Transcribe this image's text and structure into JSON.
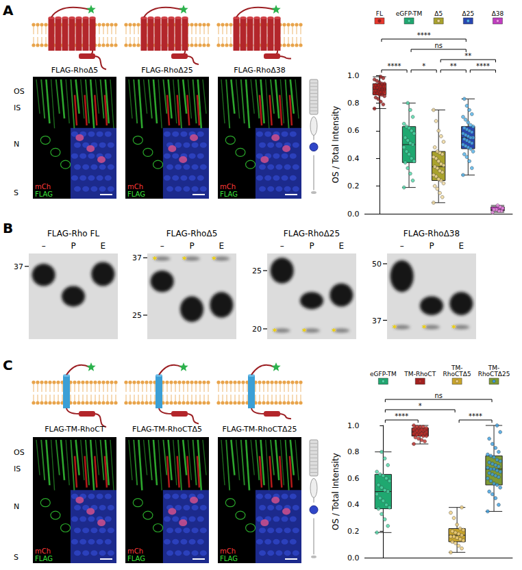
{
  "figure": {
    "panel_A": {
      "letter": "A",
      "layers": [
        "OS",
        "IS",
        "N",
        "S"
      ],
      "images": [
        {
          "title": "FLAG-RhoΔ5",
          "channels": [
            "mCh",
            "FLAG"
          ]
        },
        {
          "title": "FLAG-RhoΔ25",
          "channels": [
            "mCh",
            "FLAG"
          ]
        },
        {
          "title": "FLAG-RhoΔ38",
          "channels": [
            "mCh",
            "FLAG"
          ]
        }
      ]
    },
    "panel_B": {
      "letter": "B",
      "blots": [
        {
          "title": "FLAG-Rho FL",
          "lanes": [
            "–",
            "P",
            "E"
          ],
          "markers": [
            37
          ],
          "asterisk": "*",
          "asterisk_lanes": []
        },
        {
          "title": "FLAG-RhoΔ5",
          "lanes": [
            "–",
            "P",
            "E"
          ],
          "markers": [
            37,
            25
          ],
          "asterisk": "*",
          "asterisk_lanes": [
            "–",
            "P",
            "E"
          ]
        },
        {
          "title": "FLAG-RhoΔ25",
          "lanes": [
            "–",
            "P",
            "E"
          ],
          "markers": [
            25,
            20
          ],
          "asterisk": "*",
          "asterisk_lanes": [
            "–",
            "P",
            "E"
          ]
        },
        {
          "title": "FLAG-RhoΔ38",
          "lanes": [
            "–",
            "P",
            "E"
          ],
          "markers": [
            50,
            37
          ],
          "asterisk": "*",
          "asterisk_lanes": [
            "–",
            "P",
            "E"
          ]
        }
      ]
    },
    "panel_C": {
      "letter": "C",
      "layers": [
        "OS",
        "IS",
        "N",
        "S"
      ],
      "images": [
        {
          "title": "FLAG-TM-RhoCT",
          "channels": [
            "mCh",
            "FLAG"
          ]
        },
        {
          "title": "FLAG-TM-RhoCTΔ5",
          "channels": [
            "mCh",
            "FLAG"
          ]
        },
        {
          "title": "FLAG-TM-RhoCTΔ25",
          "channels": [
            "mCh",
            "FLAG"
          ]
        }
      ]
    }
  },
  "chart_data": [
    {
      "type": "boxplot",
      "ylabel": "OS / Total Intensity",
      "categories": [
        "FL",
        "eGFP-TM",
        "Δ5",
        "Δ25",
        "Δ38"
      ],
      "legend": "top",
      "tick_labels": "y",
      "grid": false,
      "ylim": [
        0,
        1
      ],
      "yticks": [
        {
          "value": 0,
          "label": "0.0"
        },
        0.2,
        0.4,
        0.6,
        0.8,
        {
          "value": 1,
          "label": "1.0"
        }
      ],
      "groups": [
        {
          "name": "FL",
          "color": "#e8372c",
          "point_color": "#9b1b1b",
          "box": [
            0.76,
            0.86,
            0.9,
            0.94,
            0.99
          ],
          "values": [
            0.76,
            0.79,
            0.81,
            0.83,
            0.84,
            0.85,
            0.86,
            0.86,
            0.87,
            0.87,
            0.88,
            0.88,
            0.89,
            0.89,
            0.9,
            0.9,
            0.9,
            0.91,
            0.91,
            0.92,
            0.92,
            0.93,
            0.93,
            0.94,
            0.94,
            0.95,
            0.96,
            0.97,
            0.98,
            0.99
          ]
        },
        {
          "name": "eGFP-TM",
          "color": "#1fa870",
          "point_color": "#4dd6a6",
          "box": [
            0.19,
            0.37,
            0.5,
            0.63,
            0.8
          ],
          "values": [
            0.19,
            0.24,
            0.29,
            0.33,
            0.37,
            0.38,
            0.4,
            0.43,
            0.45,
            0.48,
            0.5,
            0.51,
            0.53,
            0.55,
            0.58,
            0.6,
            0.62,
            0.63,
            0.65,
            0.7,
            0.75,
            0.8
          ]
        },
        {
          "name": "Δ5",
          "color": "#a9a22c",
          "point_color": "#efd79a",
          "box": [
            0.08,
            0.24,
            0.34,
            0.45,
            0.75
          ],
          "values": [
            0.08,
            0.12,
            0.15,
            0.18,
            0.2,
            0.22,
            0.24,
            0.25,
            0.27,
            0.28,
            0.3,
            0.31,
            0.33,
            0.34,
            0.35,
            0.36,
            0.38,
            0.4,
            0.41,
            0.43,
            0.44,
            0.45,
            0.48,
            0.52,
            0.56,
            0.6,
            0.67,
            0.75
          ]
        },
        {
          "name": "Δ25",
          "color": "#2846b4",
          "point_color": "#4fb0e8",
          "box": [
            0.28,
            0.47,
            0.55,
            0.63,
            0.83
          ],
          "values": [
            0.28,
            0.33,
            0.38,
            0.41,
            0.43,
            0.45,
            0.47,
            0.48,
            0.49,
            0.5,
            0.51,
            0.52,
            0.53,
            0.54,
            0.55,
            0.55,
            0.56,
            0.57,
            0.58,
            0.59,
            0.6,
            0.61,
            0.62,
            0.63,
            0.64,
            0.66,
            0.68,
            0.7,
            0.72,
            0.75,
            0.78,
            0.83
          ]
        },
        {
          "name": "Δ38",
          "color": "#c23cc2",
          "point_color": "#f08ee8",
          "box": [
            0.01,
            0.02,
            0.03,
            0.05,
            0.06
          ],
          "values": [
            0.01,
            0.02,
            0.02,
            0.03,
            0.03,
            0.04,
            0.05,
            0.06
          ]
        }
      ],
      "significance": [
        {
          "from": "Δ5",
          "to": "Δ38",
          "label": "**"
        },
        {
          "from": "FL",
          "to": "Δ25",
          "label": "****"
        },
        {
          "from": "FL",
          "to": "eGFP-TM",
          "label": "****"
        },
        {
          "from": "eGFP-TM",
          "to": "Δ5",
          "label": "*"
        },
        {
          "from": "Δ5",
          "to": "Δ25",
          "label": "**"
        },
        {
          "from": "Δ25",
          "to": "Δ38",
          "label": "****"
        },
        {
          "from": "eGFP-TM",
          "to": "Δ25",
          "label": "ns"
        }
      ]
    },
    {
      "type": "boxplot",
      "ylabel": "OS / Total Intensity",
      "categories": [
        "eGFP-TM",
        "TM-RhoCT",
        "TM-RhoCTΔ5",
        "TM-RhoCTΔ25"
      ],
      "legend": "top",
      "tick_labels": "y",
      "grid": false,
      "ylim": [
        0,
        1
      ],
      "yticks": [
        {
          "value": 0,
          "label": "0.0"
        },
        0.2,
        0.4,
        0.6,
        0.8,
        {
          "value": 1,
          "label": "1.0"
        }
      ],
      "groups": [
        {
          "name": "eGFP-TM",
          "color": "#1fa870",
          "point_color": "#4dd6a6",
          "box": [
            0.19,
            0.37,
            0.5,
            0.63,
            0.8
          ],
          "values": [
            0.19,
            0.24,
            0.29,
            0.33,
            0.37,
            0.38,
            0.4,
            0.43,
            0.45,
            0.48,
            0.5,
            0.51,
            0.53,
            0.55,
            0.58,
            0.6,
            0.62,
            0.63,
            0.65,
            0.7,
            0.75,
            0.8
          ]
        },
        {
          "name": "TM-RhoCT",
          "color": "#a3201e",
          "point_color": "#c0302a",
          "box": [
            0.86,
            0.92,
            0.95,
            0.98,
            1
          ],
          "values": [
            0.86,
            0.88,
            0.89,
            0.9,
            0.91,
            0.92,
            0.92,
            0.93,
            0.93,
            0.94,
            0.94,
            0.94,
            0.95,
            0.95,
            0.95,
            0.96,
            0.96,
            0.96,
            0.97,
            0.97,
            0.97,
            0.98,
            0.98,
            0.98,
            0.99,
            0.99,
            0.99,
            1
          ]
        },
        {
          "name": "TM-RhoCTΔ5",
          "color": "#c8a42a",
          "point_color": "#f0d080",
          "box": [
            0.04,
            0.12,
            0.17,
            0.22,
            0.38
          ],
          "values": [
            0.04,
            0.07,
            0.09,
            0.11,
            0.12,
            0.13,
            0.14,
            0.15,
            0.16,
            0.16,
            0.17,
            0.18,
            0.19,
            0.2,
            0.21,
            0.22,
            0.25,
            0.3,
            0.34,
            0.38
          ]
        },
        {
          "name": "TM-RhoCTΔ25",
          "color": "#7e9a34",
          "point_color": "#3a9ee0",
          "box": [
            0.35,
            0.55,
            0.67,
            0.77,
            1
          ],
          "values": [
            0.35,
            0.4,
            0.45,
            0.48,
            0.5,
            0.53,
            0.55,
            0.56,
            0.58,
            0.6,
            0.61,
            0.62,
            0.63,
            0.64,
            0.65,
            0.66,
            0.67,
            0.67,
            0.68,
            0.69,
            0.7,
            0.71,
            0.72,
            0.73,
            0.74,
            0.76,
            0.77,
            0.78,
            0.8,
            0.83,
            0.86,
            0.9,
            0.95,
            1
          ]
        }
      ],
      "significance": [
        {
          "from": "eGFP-TM",
          "to": "TM-RhoCTΔ25",
          "label": "ns"
        },
        {
          "from": "eGFP-TM",
          "to": "TM-RhoCT",
          "label": "****"
        },
        {
          "from": "TM-RhoCTΔ5",
          "to": "TM-RhoCTΔ25",
          "label": "****"
        },
        {
          "from": "eGFP-TM",
          "to": "TM-RhoCTΔ5",
          "label": "*"
        }
      ]
    }
  ]
}
